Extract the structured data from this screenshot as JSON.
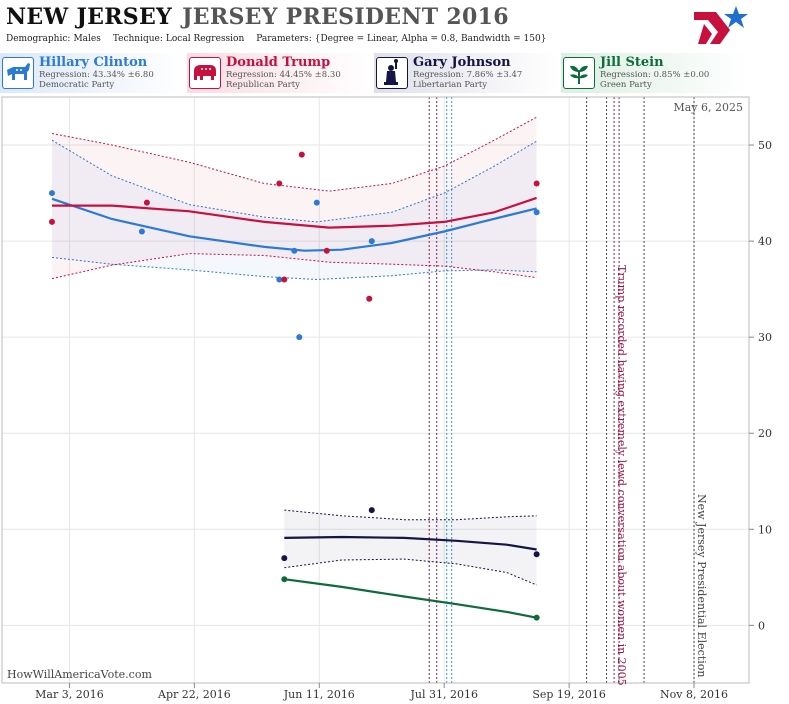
{
  "header": {
    "state": "NEW JERSEY",
    "race": "JERSEY PRESIDENT 2016",
    "demographic_label": "Demographic:",
    "demographic_value": "Males",
    "technique_label": "Technique:",
    "technique_value": "Local Regression",
    "parameters_label": "Parameters:",
    "parameters_value": "{Degree = Linear, Alpha = 0.8, Bandwidth = 150}"
  },
  "candidates": [
    {
      "name": "Hillary Clinton",
      "regression": "Regression: 43.34% ±6.80",
      "party": "Democratic Party",
      "color": "#2a7ad6",
      "icon": "donkey-icon"
    },
    {
      "name": "Donald Trump",
      "regression": "Regression: 44.45% ±8.30",
      "party": "Republican Party",
      "color": "#c8103e",
      "icon": "elephant-icon"
    },
    {
      "name": "Gary Johnson",
      "regression": "Regression: 7.86% ±3.47",
      "party": "Libertarian Party",
      "color": "#141446",
      "icon": "statue-of-liberty-icon"
    },
    {
      "name": "Jill Stein",
      "regression": "Regression: 0.85% ±0.00",
      "party": "Green Party",
      "color": "#0d6b3c",
      "icon": "plant-icon"
    }
  ],
  "footer": {
    "site": "HowWillAmericaVote.com"
  },
  "chart_data": {
    "type": "scatter",
    "date_label": "May 6, 2025",
    "x_ticks": [
      "Mar 3, 2016",
      "Apr 22, 2016",
      "Jun 11, 2016",
      "Jul 31, 2016",
      "Sep 19, 2016",
      "Nov 8, 2016"
    ],
    "y_ticks": [
      0,
      10,
      20,
      30,
      40,
      50
    ],
    "xlim": [
      "2016-02-05",
      "2016-11-30"
    ],
    "ylim": [
      -6,
      55
    ],
    "grid": true,
    "series": [
      {
        "name": "Hillary Clinton",
        "color": "#2a7ad6",
        "points": [
          [
            "2016-02-25",
            45
          ],
          [
            "2016-04-01",
            41
          ],
          [
            "2016-05-26",
            36
          ],
          [
            "2016-06-01",
            39
          ],
          [
            "2016-06-03",
            30
          ],
          [
            "2016-06-10",
            44
          ],
          [
            "2016-07-02",
            40
          ],
          [
            "2016-09-06",
            43
          ]
        ],
        "fit": [
          [
            "2016-02-25",
            44.4
          ],
          [
            "2016-03-20",
            42.3
          ],
          [
            "2016-04-20",
            40.5
          ],
          [
            "2016-05-20",
            39.4
          ],
          [
            "2016-06-05",
            39.0
          ],
          [
            "2016-06-20",
            39.1
          ],
          [
            "2016-07-10",
            39.8
          ],
          [
            "2016-07-31",
            41.0
          ],
          [
            "2016-08-15",
            42.0
          ],
          [
            "2016-09-06",
            43.4
          ]
        ],
        "band_upper": [
          [
            "2016-02-25",
            50.5
          ],
          [
            "2016-03-20",
            46.8
          ],
          [
            "2016-04-20",
            43.8
          ],
          [
            "2016-05-20",
            42.5
          ],
          [
            "2016-06-10",
            42.0
          ],
          [
            "2016-07-10",
            43.0
          ],
          [
            "2016-07-31",
            45.0
          ],
          [
            "2016-08-20",
            47.8
          ],
          [
            "2016-09-06",
            50.4
          ]
        ],
        "band_lower": [
          [
            "2016-02-25",
            38.3
          ],
          [
            "2016-03-20",
            37.6
          ],
          [
            "2016-04-20",
            37.0
          ],
          [
            "2016-05-20",
            36.3
          ],
          [
            "2016-06-10",
            36.0
          ],
          [
            "2016-07-10",
            36.4
          ],
          [
            "2016-07-31",
            36.9
          ],
          [
            "2016-08-20",
            37.0
          ],
          [
            "2016-09-06",
            36.8
          ]
        ]
      },
      {
        "name": "Donald Trump",
        "color": "#c8103e",
        "points": [
          [
            "2016-02-25",
            42
          ],
          [
            "2016-04-03",
            44
          ],
          [
            "2016-05-26",
            46
          ],
          [
            "2016-05-28",
            36
          ],
          [
            "2016-06-04",
            49
          ],
          [
            "2016-06-14",
            39
          ],
          [
            "2016-07-01",
            34
          ],
          [
            "2016-09-06",
            46
          ]
        ],
        "fit": [
          [
            "2016-02-25",
            43.7
          ],
          [
            "2016-03-20",
            43.7
          ],
          [
            "2016-04-20",
            43.1
          ],
          [
            "2016-05-20",
            42.0
          ],
          [
            "2016-06-15",
            41.4
          ],
          [
            "2016-07-10",
            41.6
          ],
          [
            "2016-07-31",
            42.0
          ],
          [
            "2016-08-20",
            43.0
          ],
          [
            "2016-09-06",
            44.5
          ]
        ],
        "band_upper": [
          [
            "2016-02-25",
            51.2
          ],
          [
            "2016-03-20",
            50.0
          ],
          [
            "2016-04-20",
            48.2
          ],
          [
            "2016-05-20",
            46.0
          ],
          [
            "2016-06-15",
            45.2
          ],
          [
            "2016-07-10",
            46.0
          ],
          [
            "2016-07-31",
            47.8
          ],
          [
            "2016-08-20",
            50.5
          ],
          [
            "2016-09-06",
            52.9
          ]
        ],
        "band_lower": [
          [
            "2016-02-25",
            36.1
          ],
          [
            "2016-03-20",
            37.5
          ],
          [
            "2016-04-20",
            38.7
          ],
          [
            "2016-05-20",
            38.5
          ],
          [
            "2016-06-15",
            37.8
          ],
          [
            "2016-07-10",
            37.6
          ],
          [
            "2016-07-31",
            37.4
          ],
          [
            "2016-08-20",
            36.8
          ],
          [
            "2016-09-06",
            36.2
          ]
        ]
      },
      {
        "name": "Gary Johnson",
        "color": "#141446",
        "points": [
          [
            "2016-05-28",
            7
          ],
          [
            "2016-07-02",
            12
          ],
          [
            "2016-09-06",
            7.4
          ]
        ],
        "fit": [
          [
            "2016-05-28",
            9.1
          ],
          [
            "2016-06-20",
            9.2
          ],
          [
            "2016-07-15",
            9.1
          ],
          [
            "2016-08-05",
            8.8
          ],
          [
            "2016-08-25",
            8.4
          ],
          [
            "2016-09-06",
            7.9
          ]
        ],
        "band_upper": [
          [
            "2016-05-28",
            12.0
          ],
          [
            "2016-06-20",
            11.4
          ],
          [
            "2016-07-15",
            11.0
          ],
          [
            "2016-08-05",
            11.0
          ],
          [
            "2016-08-25",
            11.3
          ],
          [
            "2016-09-06",
            11.4
          ]
        ],
        "band_lower": [
          [
            "2016-05-28",
            6.0
          ],
          [
            "2016-06-20",
            6.8
          ],
          [
            "2016-07-15",
            6.9
          ],
          [
            "2016-08-05",
            6.4
          ],
          [
            "2016-08-25",
            5.5
          ],
          [
            "2016-09-06",
            4.2
          ]
        ]
      },
      {
        "name": "Jill Stein",
        "color": "#0d6b3c",
        "points": [
          [
            "2016-05-28",
            4.8
          ],
          [
            "2016-09-06",
            0.8
          ]
        ],
        "fit": [
          [
            "2016-05-28",
            4.8
          ],
          [
            "2016-06-20",
            4.0
          ],
          [
            "2016-07-15",
            3.0
          ],
          [
            "2016-08-05",
            2.2
          ],
          [
            "2016-08-25",
            1.4
          ],
          [
            "2016-09-06",
            0.8
          ]
        ]
      }
    ],
    "event_lines": [
      {
        "date": "2016-07-25",
        "color": "#8a1a4a"
      },
      {
        "date": "2016-07-28",
        "color": "#8a1a4a"
      },
      {
        "date": "2016-08-01",
        "color": "#2a9ad0"
      },
      {
        "date": "2016-08-03",
        "color": "#2a9ad0"
      },
      {
        "date": "2016-09-26",
        "color": "#444444"
      },
      {
        "date": "2016-10-04",
        "color": "#444444"
      },
      {
        "date": "2016-10-07",
        "color": "#8a1a4a"
      },
      {
        "date": "2016-10-09",
        "color": "#8a1a4a"
      },
      {
        "date": "2016-10-19",
        "color": "#444444"
      },
      {
        "date": "2016-11-08",
        "color": "#444444"
      }
    ],
    "annotations": [
      {
        "text": "Trump recorded having extremely lewd conversation about women in 2005",
        "date": "2016-10-07",
        "color": "#9a1845"
      },
      {
        "text": "New Jersey Presidential Election",
        "date": "2016-11-08",
        "color": "#444444"
      }
    ]
  }
}
